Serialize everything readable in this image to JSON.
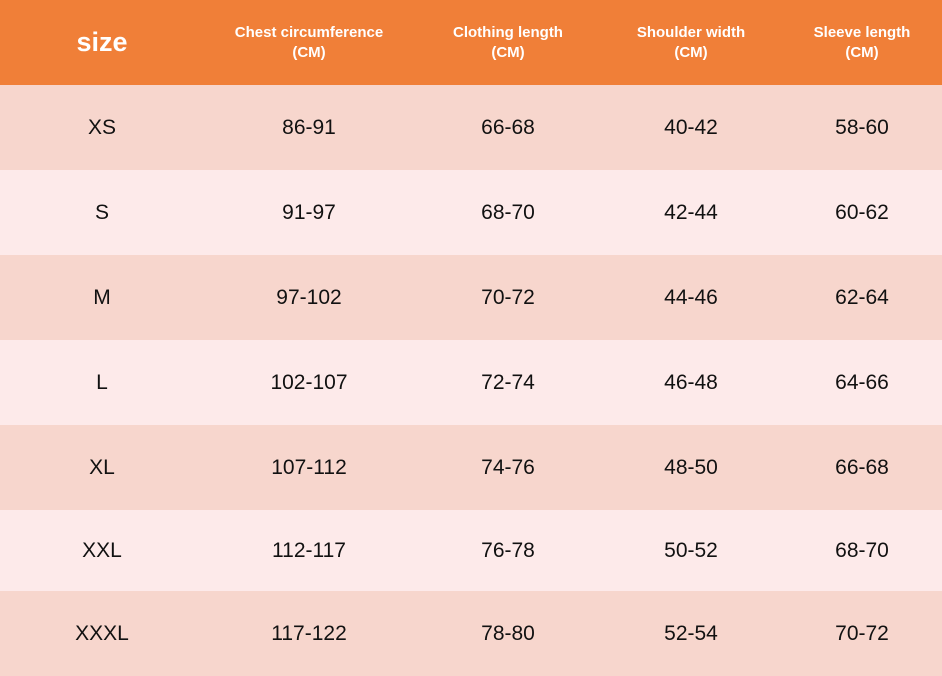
{
  "table": {
    "header": {
      "size": "size",
      "columns": [
        {
          "line1": "Chest circumference",
          "line2": "(CM)"
        },
        {
          "line1": "Clothing length",
          "line2": "(CM)"
        },
        {
          "line1": "Shoulder width",
          "line2": "(CM)"
        },
        {
          "line1": "Sleeve length",
          "line2": "(CM)"
        }
      ]
    },
    "rows": [
      [
        "XS",
        "86-91",
        "66-68",
        "40-42",
        "58-60"
      ],
      [
        "S",
        "91-97",
        "68-70",
        "42-44",
        "60-62"
      ],
      [
        "M",
        "97-102",
        "70-72",
        "44-46",
        "62-64"
      ],
      [
        "L",
        "102-107",
        "72-74",
        "46-48",
        "64-66"
      ],
      [
        "XL",
        "107-112",
        "74-76",
        "48-50",
        "66-68"
      ],
      [
        "XXL",
        "112-117",
        "76-78",
        "50-52",
        "68-70"
      ],
      [
        "XXXL",
        "117-122",
        "78-80",
        "52-54",
        "70-72"
      ]
    ],
    "colors": {
      "header_bg": "#f07f38",
      "header_text": "#ffffff",
      "row_odd_bg": "#f7d6cd",
      "row_even_bg": "#fdeaea",
      "cell_text": "#111111"
    }
  }
}
